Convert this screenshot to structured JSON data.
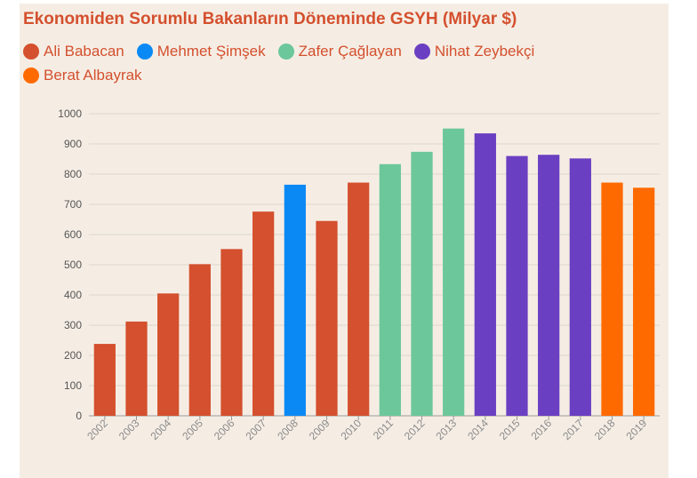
{
  "chart_data": {
    "type": "bar",
    "title": "Ekonomiden Sorumlu Bakanların Döneminde GSYH (Milyar $)",
    "xlabel": "",
    "ylabel": "",
    "ylim": [
      0,
      1000
    ],
    "yticks": [
      "0",
      "100",
      "200",
      "300",
      "400",
      "500",
      "600",
      "700",
      "800",
      "900",
      "1000"
    ],
    "grid": true,
    "legend_position": "top-left",
    "legend": [
      {
        "name": "Ali Babacan",
        "color": "#d4502e"
      },
      {
        "name": "Mehmet Şimşek",
        "color": "#0a89f5"
      },
      {
        "name": "Zafer Çağlayan",
        "color": "#6cc79b"
      },
      {
        "name": "Nihat Zeybekçi",
        "color": "#6b3fc1"
      },
      {
        "name": "Berat Albayrak",
        "color": "#ff6a00"
      }
    ],
    "categories": [
      "2002",
      "2003",
      "2004",
      "2005",
      "2006",
      "2007",
      "2008",
      "2009",
      "2010",
      "2011",
      "2012",
      "2013",
      "2014",
      "2015",
      "2016",
      "2017",
      "2018",
      "2019"
    ],
    "values": [
      238,
      312,
      405,
      502,
      552,
      676,
      765,
      645,
      772,
      833,
      874,
      951,
      935,
      860,
      864,
      852,
      772,
      755
    ],
    "bar_groups": [
      0,
      0,
      0,
      0,
      0,
      0,
      1,
      0,
      0,
      2,
      2,
      2,
      3,
      3,
      3,
      3,
      4,
      4
    ]
  }
}
